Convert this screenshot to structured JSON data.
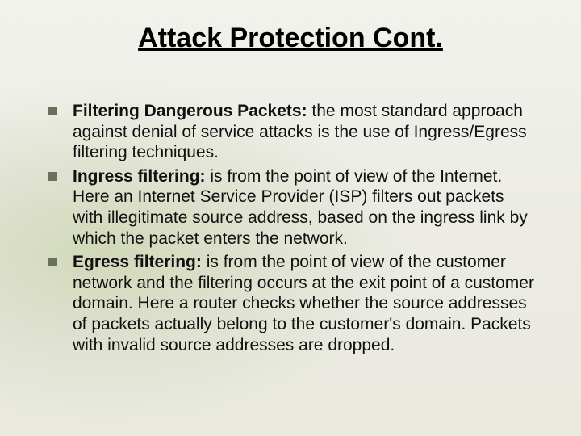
{
  "slide": {
    "title": "Attack Protection Cont.",
    "title_fontsize": 34,
    "title_color": "#000000",
    "title_underline": true,
    "background_gradient_top": "#f2f2ed",
    "background_gradient_bottom": "#e9e9e0",
    "background_accent": "#c8d2aa",
    "body_fontsize": 21,
    "body_color": "#111111",
    "bullet_color": "#6b705a",
    "bullet_size": 11,
    "bullets": [
      {
        "lead": " Filtering Dangerous Packets: ",
        "rest": "the most standard approach against denial of service attacks is the use of Ingress/Egress filtering techniques."
      },
      {
        "lead": "Ingress filtering: ",
        "rest": "is from the point of view of the Internet. Here an Internet Service Provider (ISP) filters out packets with illegitimate source address, based on the ingress link by which the packet enters the network."
      },
      {
        "lead": "Egress filtering: ",
        "rest": "is from the point of view of the customer network and the filtering occurs at the exit point of a customer domain. Here a router checks whether the source addresses of packets actually belong to the customer's domain. Packets with invalid source addresses are dropped."
      }
    ]
  }
}
